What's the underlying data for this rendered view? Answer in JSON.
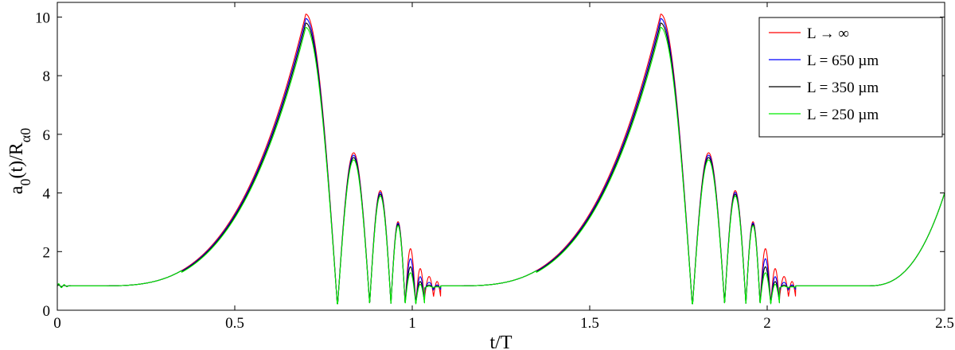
{
  "chart_data": {
    "type": "line",
    "title": "",
    "xlabel": "t/T",
    "ylabel_parts": [
      "a",
      "0",
      "(t)/R",
      "α0"
    ],
    "xlim": [
      0,
      2.5
    ],
    "ylim": [
      0,
      10.5
    ],
    "xticks": [
      0,
      0.5,
      1,
      1.5,
      2,
      2.5
    ],
    "xtick_labels": [
      "0",
      "0.5",
      "1",
      "1.5",
      "2",
      "2.5"
    ],
    "yticks": [
      0,
      2,
      4,
      6,
      8,
      10
    ],
    "ytick_labels": [
      "0",
      "2",
      "4",
      "6",
      "8",
      "10"
    ],
    "grid": false,
    "legend_position": "top-right",
    "series": [
      {
        "name": "L → ∞",
        "color": "#ff0000",
        "scale": 1.0,
        "post_ripple": 1.0
      },
      {
        "name": "L = 650 µm",
        "color": "#0000ff",
        "scale": 0.985,
        "post_ripple": 0.75
      },
      {
        "name": "L = 350 µm",
        "color": "#000000",
        "scale": 0.97,
        "post_ripple": 0.55
      },
      {
        "name": "L = 250 µm",
        "color": "#00ee00",
        "scale": 0.955,
        "post_ripple": 0.4
      }
    ],
    "cycle_period": 1.0,
    "key_points": {
      "baseline": 0.83,
      "main_peak": {
        "x": 0.7,
        "y": 10.1
      },
      "collapse_minima_x": [
        0.79,
        0.88,
        0.94,
        0.98,
        1.01,
        1.035,
        1.06,
        1.08
      ],
      "rebound_peaks": [
        {
          "x": 0.835,
          "y": 5.37
        },
        {
          "x": 0.91,
          "y": 4.08
        },
        {
          "x": 0.96,
          "y": 3.02
        },
        {
          "x": 0.995,
          "y": 2.1
        },
        {
          "x": 1.022,
          "y": 1.42
        },
        {
          "x": 1.047,
          "y": 1.15
        },
        {
          "x": 1.07,
          "y": 0.98
        }
      ],
      "end_value": {
        "x": 2.5,
        "y": 4.0
      }
    }
  }
}
